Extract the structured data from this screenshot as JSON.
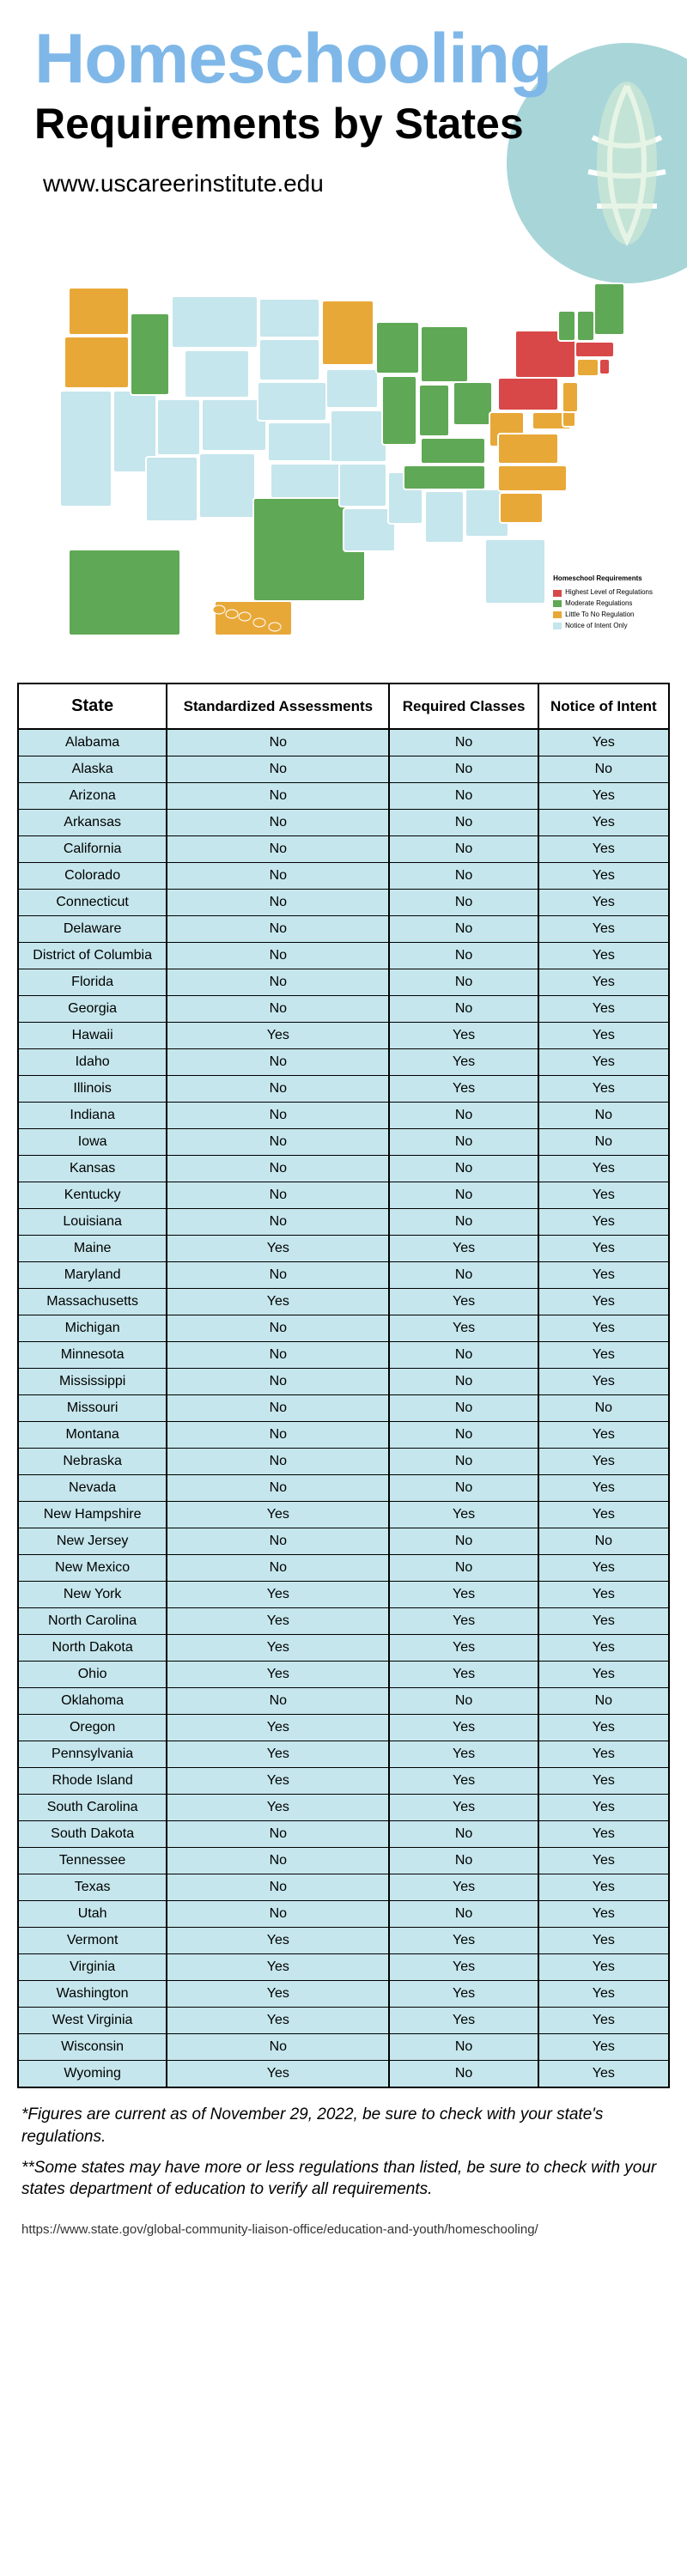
{
  "header": {
    "title_main": "Homeschooling",
    "title_sub": "Requirements by States",
    "url": "www.uscareerinstitute.edu"
  },
  "decoration": {
    "circle_color": "#a8d5d8",
    "leaf_color": "#d5ecd5"
  },
  "map": {
    "colors": {
      "none": "#c5e6ec",
      "little": "#e8a838",
      "moderate": "#5fa855",
      "highest": "#d84848",
      "stroke": "#ffffff"
    },
    "legend": {
      "title": "Homeschool Requirements",
      "items": [
        {
          "label": "Highest Level of Regulations",
          "color": "#d84848"
        },
        {
          "label": "Moderate Regulations",
          "color": "#5fa855"
        },
        {
          "label": "Little To No Regulation",
          "color": "#e8a838"
        },
        {
          "label": "Notice of Intent Only",
          "color": "#c5e6ec"
        }
      ]
    }
  },
  "table": {
    "columns": [
      "State",
      "Standardized Assessments",
      "Required Classes",
      "Notice of Intent"
    ],
    "rows": [
      [
        "Alabama",
        "No",
        "No",
        "Yes"
      ],
      [
        "Alaska",
        "No",
        "No",
        "No"
      ],
      [
        "Arizona",
        "No",
        "No",
        "Yes"
      ],
      [
        "Arkansas",
        "No",
        "No",
        "Yes"
      ],
      [
        "California",
        "No",
        "No",
        "Yes"
      ],
      [
        "Colorado",
        "No",
        "No",
        "Yes"
      ],
      [
        "Connecticut",
        "No",
        "No",
        "Yes"
      ],
      [
        "Delaware",
        "No",
        "No",
        "Yes"
      ],
      [
        "District of Columbia",
        "No",
        "No",
        "Yes"
      ],
      [
        "Florida",
        "No",
        "No",
        "Yes"
      ],
      [
        "Georgia",
        "No",
        "No",
        "Yes"
      ],
      [
        "Hawaii",
        "Yes",
        "Yes",
        "Yes"
      ],
      [
        "Idaho",
        "No",
        "Yes",
        "Yes"
      ],
      [
        "Illinois",
        "No",
        "Yes",
        "Yes"
      ],
      [
        "Indiana",
        "No",
        "No",
        "No"
      ],
      [
        "Iowa",
        "No",
        "No",
        "No"
      ],
      [
        "Kansas",
        "No",
        "No",
        "Yes"
      ],
      [
        "Kentucky",
        "No",
        "No",
        "Yes"
      ],
      [
        "Louisiana",
        "No",
        "No",
        "Yes"
      ],
      [
        "Maine",
        "Yes",
        "Yes",
        "Yes"
      ],
      [
        "Maryland",
        "No",
        "No",
        "Yes"
      ],
      [
        "Massachusetts",
        "Yes",
        "Yes",
        "Yes"
      ],
      [
        "Michigan",
        "No",
        "Yes",
        "Yes"
      ],
      [
        "Minnesota",
        "No",
        "No",
        "Yes"
      ],
      [
        "Mississippi",
        "No",
        "No",
        "Yes"
      ],
      [
        "Missouri",
        "No",
        "No",
        "No"
      ],
      [
        "Montana",
        "No",
        "No",
        "Yes"
      ],
      [
        "Nebraska",
        "No",
        "No",
        "Yes"
      ],
      [
        "Nevada",
        "No",
        "No",
        "Yes"
      ],
      [
        "New Hampshire",
        "Yes",
        "Yes",
        "Yes"
      ],
      [
        "New Jersey",
        "No",
        "No",
        "No"
      ],
      [
        "New Mexico",
        "No",
        "No",
        "Yes"
      ],
      [
        "New York",
        "Yes",
        "Yes",
        "Yes"
      ],
      [
        "North Carolina",
        "Yes",
        "Yes",
        "Yes"
      ],
      [
        "North Dakota",
        "Yes",
        "Yes",
        "Yes"
      ],
      [
        "Ohio",
        "Yes",
        "Yes",
        "Yes"
      ],
      [
        "Oklahoma",
        "No",
        "No",
        "No"
      ],
      [
        "Oregon",
        "Yes",
        "Yes",
        "Yes"
      ],
      [
        "Pennsylvania",
        "Yes",
        "Yes",
        "Yes"
      ],
      [
        "Rhode Island",
        "Yes",
        "Yes",
        "Yes"
      ],
      [
        "South Carolina",
        "Yes",
        "Yes",
        "Yes"
      ],
      [
        "South Dakota",
        "No",
        "No",
        "Yes"
      ],
      [
        "Tennessee",
        "No",
        "No",
        "Yes"
      ],
      [
        "Texas",
        "No",
        "Yes",
        "Yes"
      ],
      [
        "Utah",
        "No",
        "No",
        "Yes"
      ],
      [
        "Vermont",
        "Yes",
        "Yes",
        "Yes"
      ],
      [
        "Virginia",
        "Yes",
        "Yes",
        "Yes"
      ],
      [
        "Washington",
        "Yes",
        "Yes",
        "Yes"
      ],
      [
        "West Virginia",
        "Yes",
        "Yes",
        "Yes"
      ],
      [
        "Wisconsin",
        "No",
        "No",
        "Yes"
      ],
      [
        "Wyoming",
        "Yes",
        "No",
        "Yes"
      ]
    ],
    "header_bg": "#ffffff",
    "cell_bg": "#c5e6ec",
    "border_color": "#000000"
  },
  "footnotes": [
    "*Figures are current as of November 29, 2022, be sure to check with your state's regulations.",
    "**Some states may have more or less regulations than listed, be sure to check with your states department of education to verify all requirements."
  ],
  "source": "https://www.state.gov/global-community-liaison-office/education-and-youth/homeschooling/"
}
